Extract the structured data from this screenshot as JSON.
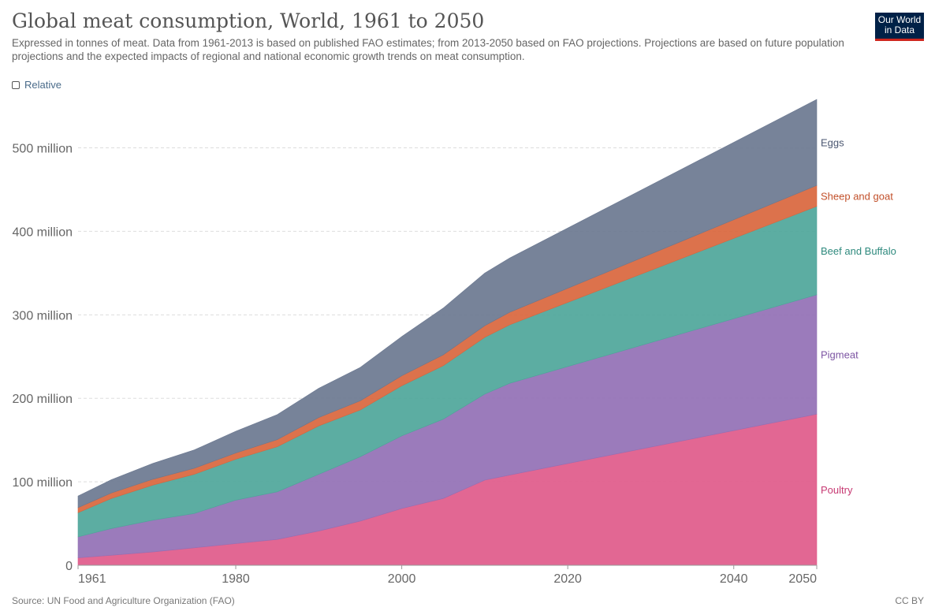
{
  "header": {
    "title": "Global meat consumption, World, 1961 to 2050",
    "subtitle": "Expressed in tonnes of meat. Data from 1961-2013 is based on published FAO estimates; from 2013-2050 based on FAO projections. Projections are based on future population projections and the expected impacts of regional and national economic growth trends on meat consumption.",
    "logo_line1": "Our World",
    "logo_line2": "in Data"
  },
  "controls": {
    "relative_label": "Relative"
  },
  "footer": {
    "source": "Source: UN Food and Agriculture Organization (FAO)",
    "license": "CC BY"
  },
  "chart_data": {
    "type": "area",
    "stacked": true,
    "title": "Global meat consumption, World, 1961 to 2050",
    "xlim": [
      1961,
      2050
    ],
    "ylim": [
      0,
      560000000
    ],
    "x_ticks": [
      {
        "value": 1961,
        "label": "1961"
      },
      {
        "value": 1980,
        "label": "1980"
      },
      {
        "value": 2000,
        "label": "2000"
      },
      {
        "value": 2020,
        "label": "2020"
      },
      {
        "value": 2040,
        "label": "2040"
      },
      {
        "value": 2050,
        "label": "2050"
      }
    ],
    "y_ticks": [
      {
        "value": 0,
        "label": "0"
      },
      {
        "value": 100000000,
        "label": "100 million"
      },
      {
        "value": 200000000,
        "label": "200 million"
      },
      {
        "value": 300000000,
        "label": "300 million"
      },
      {
        "value": 400000000,
        "label": "400 million"
      },
      {
        "value": 500000000,
        "label": "500 million"
      }
    ],
    "grid": true,
    "legend": "right",
    "x": [
      1961,
      1965,
      1970,
      1975,
      1980,
      1985,
      1990,
      1995,
      2000,
      2005,
      2010,
      2013,
      2050
    ],
    "series": [
      {
        "name": "Poultry",
        "color": "#e05a8a",
        "values": [
          9000000,
          12000000,
          16000000,
          21000000,
          26000000,
          31000000,
          41000000,
          53000000,
          68000000,
          80000000,
          102000000,
          108000000,
          181000000
        ]
      },
      {
        "name": "Pigmeat",
        "color": "#9370b5",
        "values": [
          25000000,
          32000000,
          38000000,
          41000000,
          52000000,
          57000000,
          68000000,
          77000000,
          87000000,
          95000000,
          103000000,
          110000000,
          143000000
        ]
      },
      {
        "name": "Beef and Buffalo",
        "color": "#4ea69a",
        "values": [
          29000000,
          36000000,
          42000000,
          47000000,
          49000000,
          54000000,
          58000000,
          56000000,
          60000000,
          64000000,
          68000000,
          70000000,
          106000000
        ]
      },
      {
        "name": "Sheep and goat",
        "color": "#d9663d",
        "values": [
          6000000,
          6500000,
          7000000,
          7200000,
          7500000,
          8500000,
          10000000,
          11000000,
          12000000,
          13000000,
          14000000,
          15000000,
          25000000
        ]
      },
      {
        "name": "Eggs",
        "color": "#6b7890",
        "values": [
          14000000,
          16000000,
          19000000,
          22000000,
          26000000,
          30000000,
          35000000,
          40000000,
          47000000,
          56000000,
          63000000,
          65000000,
          103000000
        ]
      }
    ]
  }
}
